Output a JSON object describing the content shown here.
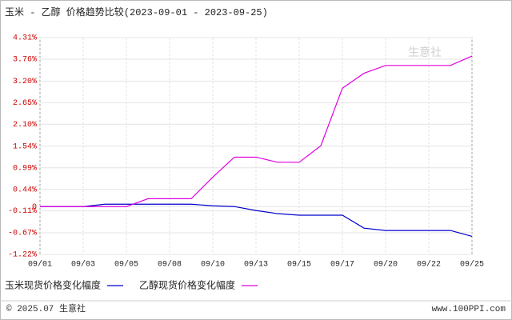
{
  "chart_data": {
    "type": "line",
    "title": "玉米 - 乙醇 价格趋势比较(2023-09-01 - 2023-09-25)",
    "categories": [
      "09/01",
      null,
      "09/03",
      null,
      "09/05",
      null,
      "09/08",
      null,
      "09/10",
      null,
      "09/13",
      null,
      "09/15",
      null,
      "09/17",
      null,
      "09/20",
      null,
      "09/22",
      null,
      "09/25"
    ],
    "series": [
      {
        "name": "玉米现货价格变化幅度",
        "color": "#0000cc",
        "values": [
          0,
          0,
          0,
          0.06,
          0.06,
          0.06,
          0.06,
          0.06,
          0.02,
          0,
          -0.1,
          -0.18,
          -0.22,
          -0.22,
          -0.22,
          -0.55,
          -0.61,
          -0.61,
          -0.61,
          -0.61,
          -0.76
        ]
      },
      {
        "name": "乙醇现货价格变化幅度",
        "color": "#e000e0",
        "values": [
          0,
          0,
          0,
          0,
          0,
          0.2,
          0.2,
          0.2,
          0.75,
          1.26,
          1.26,
          1.13,
          1.13,
          1.55,
          3.02,
          3.4,
          3.6,
          3.6,
          3.6,
          3.6,
          3.84
        ]
      }
    ],
    "ylim": [
      -1.22,
      4.31
    ],
    "yticks": [
      {
        "value": 4.31,
        "label": "4.31%"
      },
      {
        "value": 3.76,
        "label": "3.76%"
      },
      {
        "value": 3.2,
        "label": "3.20%"
      },
      {
        "value": 2.65,
        "label": "2.65%"
      },
      {
        "value": 2.1,
        "label": "2.10%"
      },
      {
        "value": 1.54,
        "label": "1.54%"
      },
      {
        "value": 0.99,
        "label": "0.99%"
      },
      {
        "value": 0.44,
        "label": "0.44%"
      },
      0,
      {
        "value": -0.11,
        "label": "-0.11%"
      },
      {
        "value": -0.67,
        "label": "-0.67%"
      },
      {
        "value": -1.22,
        "label": "-1.22%"
      }
    ],
    "grid": true,
    "watermark": "生意社"
  },
  "footer": {
    "left": "© 2025.07 生意社",
    "right": "www.100PPI.com"
  }
}
